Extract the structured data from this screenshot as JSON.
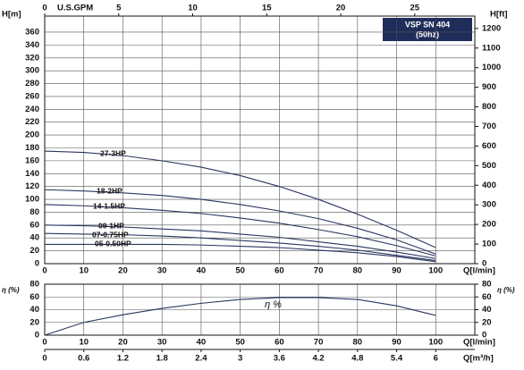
{
  "chart_data": [
    {
      "type": "line",
      "title": "VSP SN 404",
      "subtitle": "(50hz)",
      "x_label": "Q[l/min]",
      "y_label": "H[m]",
      "y2_label": "H[ft]",
      "top_x_label": "U.S.GPM",
      "x": [
        0,
        10,
        20,
        30,
        40,
        50,
        60,
        70,
        80,
        90,
        100
      ],
      "series": [
        {
          "name": "27-3HP",
          "color": "#2a3560",
          "values": [
            175,
            173,
            168,
            160,
            150,
            137,
            120,
            100,
            77,
            52,
            25
          ]
        },
        {
          "name": "18-2HP",
          "color": "#2a3560",
          "values": [
            115,
            113,
            110,
            106,
            100,
            92,
            82,
            70,
            55,
            37,
            15
          ]
        },
        {
          "name": "14-1.5HP",
          "color": "#2a3560",
          "values": [
            92,
            90,
            87,
            83,
            78,
            71,
            63,
            53,
            42,
            28,
            12
          ]
        },
        {
          "name": "09-1HP",
          "color": "#2a3560",
          "values": [
            60,
            59,
            57,
            54,
            51,
            46,
            41,
            34,
            27,
            18,
            8
          ]
        },
        {
          "name": "07-0.75HP",
          "color": "#2a3560",
          "values": [
            47,
            46,
            45,
            43,
            40,
            36,
            32,
            27,
            21,
            13,
            5
          ]
        },
        {
          "name": "05-0.50HP",
          "color": "#2a3560",
          "values": [
            30,
            30,
            30,
            30,
            29,
            27,
            25,
            21,
            17,
            11,
            3
          ]
        }
      ],
      "xlim": [
        0,
        110
      ],
      "xticks": [
        0,
        10,
        20,
        30,
        40,
        50,
        60,
        70,
        80,
        90,
        100
      ],
      "top_xlim": [
        0,
        29.06
      ],
      "top_xticks": [
        0,
        5,
        10,
        15,
        20,
        25
      ],
      "ylim": [
        0,
        385
      ],
      "yticks": [
        0,
        20,
        40,
        60,
        80,
        100,
        120,
        140,
        160,
        180,
        200,
        220,
        240,
        260,
        280,
        300,
        320,
        340,
        360
      ],
      "y2lim": [
        0,
        1263
      ],
      "y2ticks": [
        0,
        100,
        200,
        300,
        400,
        500,
        600,
        700,
        800,
        900,
        1000,
        1100,
        1200
      ],
      "grid": true
    },
    {
      "type": "line",
      "y_label": "η (%)",
      "y2_label": "η (%)",
      "x_label": "Q[l/min]",
      "x2_label": "Q[m³/h]",
      "x": [
        0,
        10,
        20,
        30,
        40,
        50,
        60,
        70,
        80,
        90,
        100
      ],
      "series": [
        {
          "name": "η %",
          "color": "#2a3560",
          "values": [
            0,
            20,
            32,
            42,
            50,
            56,
            59,
            59,
            56,
            46,
            31
          ]
        }
      ],
      "xlim": [
        0,
        110
      ],
      "xticks": [
        0,
        10,
        20,
        30,
        40,
        50,
        60,
        70,
        80,
        90,
        100
      ],
      "x2lim": [
        0,
        6.6
      ],
      "x2ticks": [
        0,
        0.6,
        1.2,
        1.8,
        2.4,
        3,
        3.6,
        4.2,
        4.8,
        5.4,
        6
      ],
      "ylim": [
        0,
        80
      ],
      "yticks": [
        0,
        20,
        40,
        60,
        80
      ],
      "y2lim": [
        0,
        80
      ],
      "y2ticks": [
        0,
        20,
        40,
        60,
        80
      ],
      "grid": true
    }
  ]
}
